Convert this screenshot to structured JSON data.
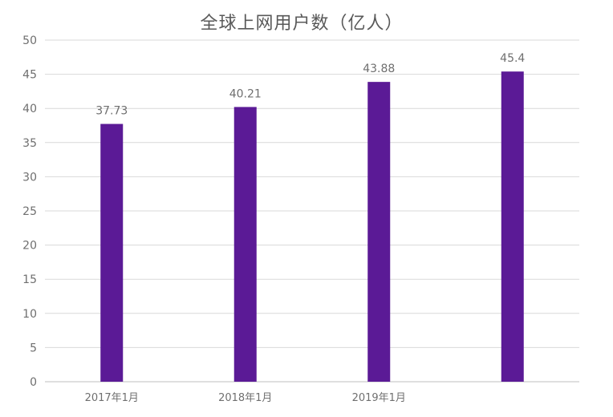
{
  "chart_data": {
    "type": "bar",
    "title": "全球上网用户数（亿人）",
    "xlabel": "",
    "ylabel": "",
    "categories": [
      "2017年1月",
      "2018年1月",
      "2019年1月",
      ""
    ],
    "values": [
      37.73,
      40.21,
      43.88,
      45.4
    ],
    "data_labels": [
      "37.73",
      "40.21",
      "43.88",
      "45.4"
    ],
    "ylim": [
      0,
      50
    ],
    "y_ticks": [
      0,
      5,
      10,
      15,
      20,
      25,
      30,
      35,
      40,
      45,
      50
    ],
    "grid": true,
    "legend": "none",
    "colors": {
      "bar": "#5b1a96",
      "grid": "#d9d9d9",
      "text": "#6f6f6f",
      "title": "#595959"
    }
  }
}
